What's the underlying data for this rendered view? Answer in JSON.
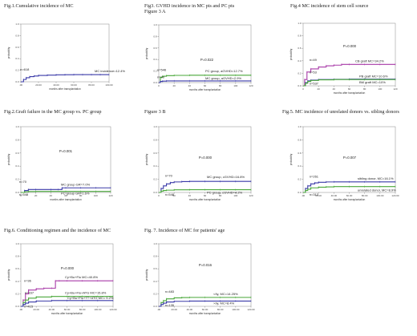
{
  "chart_data": [
    {
      "id": "fig1",
      "type": "line",
      "title": "Fig.1.Cumulative incidence of MC",
      "xlabel": "months after transplantation",
      "ylabel": "probability",
      "xticks": [
        ".00",
        "20.00",
        "40.00",
        "60.00",
        "80.00",
        "100.00"
      ],
      "yticks": [
        "0.0",
        "0.2",
        "0.4",
        "0.6",
        "0.8",
        "1.0"
      ],
      "xlim": [
        0,
        100
      ],
      "ylim": [
        0,
        1
      ],
      "p_value": "",
      "series": [
        {
          "name": "MC incidence=12.4%",
          "label": "MC incidence=12.4%",
          "color": "#3a3aa8",
          "x": [
            0,
            3,
            6,
            10,
            15,
            20,
            30,
            40,
            50,
            60,
            70,
            80,
            90,
            100
          ],
          "y": [
            0,
            0.04,
            0.07,
            0.09,
            0.1,
            0.11,
            0.115,
            0.12,
            0.122,
            0.124,
            0.124,
            0.124,
            0.124,
            0.124
          ]
        }
      ],
      "n_labels": [
        {
          "text": "n=618",
          "x": 1,
          "y": 0.15
        }
      ]
    },
    {
      "id": "fig3a",
      "type": "line",
      "title": "Fig3. GVHD incidence in MC pts and PC pts",
      "subtitle": "Figure 3 A",
      "xlabel": "months after transplantation",
      "ylabel": "probability",
      "xticks": [
        "0",
        "20",
        "40",
        "60",
        "80",
        "100",
        "120"
      ],
      "yticks": [
        "0.0",
        "0.2",
        "0.4",
        "0.6",
        "0.8",
        "1.0"
      ],
      "xlim": [
        0,
        120
      ],
      "ylim": [
        0,
        1
      ],
      "p_value": "P=0.022",
      "series": [
        {
          "name": "PC group, aGVHD=12.7%",
          "label": "PC group, aGVHD=12.7%",
          "color": "#4aa83a",
          "x": [
            0,
            2,
            5,
            10,
            20,
            40,
            60,
            80,
            100,
            120
          ],
          "y": [
            0,
            0.09,
            0.11,
            0.12,
            0.125,
            0.127,
            0.127,
            0.127,
            0.127,
            0.127
          ]
        },
        {
          "name": "MC group, aGVHD=2.9%",
          "label": "MC group, aGVHD=2.9%",
          "color": "#3a3aa8",
          "x": [
            0,
            2,
            5,
            10,
            20,
            40,
            60,
            80,
            100,
            120
          ],
          "y": [
            0,
            0.02,
            0.025,
            0.029,
            0.029,
            0.029,
            0.029,
            0.029,
            0.029,
            0.029
          ]
        }
      ],
      "n_labels": [
        {
          "text": "n=546",
          "x": 1,
          "y": 0.16
        },
        {
          "text": "n=70",
          "x": 1,
          "y": 0.05
        }
      ]
    },
    {
      "id": "fig4",
      "type": "line",
      "title": "Fig.4 MC incidence of stem cell source",
      "xlabel": "months after transplantation",
      "ylabel": "probability",
      "xticks": [
        "0",
        "20",
        "40",
        "60",
        "80",
        "100",
        "120"
      ],
      "yticks": [
        "0.0",
        "0.2",
        "0.4",
        "0.6",
        "0.8",
        "1.0"
      ],
      "xlim": [
        0,
        120
      ],
      "ylim": [
        0,
        1
      ],
      "p_value": "P=0.000",
      "series": [
        {
          "name": "CB graft MC=34.2%",
          "label": "CB graft MC=34.2%",
          "color": "#a83aa8",
          "x": [
            0,
            2,
            5,
            10,
            20,
            30,
            40,
            50,
            60,
            80,
            100,
            120
          ],
          "y": [
            0,
            0.1,
            0.22,
            0.27,
            0.3,
            0.32,
            0.33,
            0.342,
            0.342,
            0.342,
            0.342,
            0.342
          ]
        },
        {
          "name": "PB graft MC=10.6%",
          "label": "PB graft MC=10.6%",
          "color": "#3a3aa8",
          "x": [
            0,
            3,
            6,
            10,
            20,
            40,
            60,
            80,
            100,
            120
          ],
          "y": [
            0,
            0.05,
            0.08,
            0.09,
            0.1,
            0.104,
            0.106,
            0.106,
            0.106,
            0.106
          ]
        },
        {
          "name": "BM graft MC=10%",
          "label": "BM graft MC=10%",
          "color": "#4aa83a",
          "x": [
            0,
            3,
            6,
            10,
            20,
            40,
            60,
            80,
            100,
            120
          ],
          "y": [
            0,
            0.04,
            0.07,
            0.085,
            0.095,
            0.1,
            0.1,
            0.1,
            0.1,
            0.1
          ]
        }
      ],
      "n_labels": [
        {
          "text": "n=49",
          "x": 5,
          "y": 0.36
        },
        {
          "text": "n=53",
          "x": 5,
          "y": 0.15
        },
        {
          "text": "n=537",
          "x": 5,
          "y": 0.07
        }
      ]
    },
    {
      "id": "fig2",
      "type": "line",
      "title": "Fig.2.Graft failure in the MC group vs. PC group",
      "xlabel": "months after transplantation",
      "ylabel": "probability",
      "xticks": [
        "0",
        "20",
        "40",
        "60",
        "80",
        "100",
        "120"
      ],
      "yticks": [
        "0.0",
        "0.2",
        "0.4",
        "0.6",
        "0.8",
        "1.0"
      ],
      "xlim": [
        0,
        120
      ],
      "ylim": [
        0,
        1
      ],
      "p_value": "P=0.001",
      "series": [
        {
          "name": "MC group GR=7.0%",
          "label": "MC group GR=7.0%",
          "color": "#3a3aa8",
          "x": [
            0,
            5,
            10,
            20,
            40,
            50,
            55,
            60,
            80,
            100,
            120
          ],
          "y": [
            0,
            0.03,
            0.045,
            0.045,
            0.045,
            0.045,
            0.07,
            0.07,
            0.07,
            0.07,
            0.07
          ]
        },
        {
          "name": "PC group GR=1.6%",
          "label": "PC group GR=1.6%",
          "color": "#4aa83a",
          "x": [
            0,
            5,
            10,
            20,
            40,
            60,
            80,
            100,
            120
          ],
          "y": [
            0,
            0.01,
            0.014,
            0.016,
            0.016,
            0.016,
            0.016,
            0.016,
            0.016
          ]
        }
      ],
      "n_labels": [
        {
          "text": "n=70",
          "x": 1,
          "y": 0.11
        },
        {
          "text": "n=548",
          "x": 1,
          "y": 0.0
        }
      ]
    },
    {
      "id": "fig3b",
      "type": "line",
      "title": "",
      "subtitle": "Figure 3 B",
      "xlabel": "months after transplantation",
      "ylabel": "probability",
      "xticks": [
        "0",
        "20",
        "40",
        "60",
        "80",
        "100",
        "120"
      ],
      "yticks": [
        "0.0",
        "0.2",
        "0.4",
        "0.6",
        "0.8",
        "1.0"
      ],
      "xlim": [
        0,
        120
      ],
      "ylim": [
        0,
        1
      ],
      "p_value": "P=0.000",
      "series": [
        {
          "name": "MC group, cGVHD=16.8%",
          "label": "MC group, cGVHD=16.8%",
          "color": "#3a3aa8",
          "x": [
            0,
            3,
            6,
            10,
            15,
            20,
            30,
            40,
            60,
            80,
            100,
            120
          ],
          "y": [
            0,
            0.06,
            0.1,
            0.13,
            0.15,
            0.16,
            0.165,
            0.168,
            0.168,
            0.168,
            0.168,
            0.168
          ]
        },
        {
          "name": "PC group, cGVHD=4.2%",
          "label": "PC group, cGVHD=4.2%",
          "color": "#4aa83a",
          "x": [
            0,
            3,
            6,
            10,
            20,
            40,
            60,
            80,
            100,
            120
          ],
          "y": [
            0,
            0.02,
            0.03,
            0.035,
            0.04,
            0.042,
            0.042,
            0.042,
            0.042,
            0.042
          ]
        }
      ],
      "n_labels": [
        {
          "text": "n=70",
          "x": 5,
          "y": 0.2
        },
        {
          "text": "n=548",
          "x": 5,
          "y": 0.0
        }
      ]
    },
    {
      "id": "fig5",
      "type": "line",
      "title": "Fig.5. MC incidence of unrelated donors vs. sibling donors",
      "xlabel": "months after transplantation",
      "ylabel": "probability",
      "xticks": [
        ".00",
        "20.00",
        "40.00",
        "60.00",
        "80.00",
        "100.00",
        "120.00"
      ],
      "yticks": [
        "0.0",
        "0.2",
        "0.4",
        "0.6",
        "0.8",
        "1.0"
      ],
      "xlim": [
        0,
        120
      ],
      "ylim": [
        0,
        1
      ],
      "p_value": "P=0.007",
      "series": [
        {
          "name": "sibling donor, MC=16.1%",
          "label": "sibling donor, MC=16.1%",
          "color": "#3a3aa8",
          "x": [
            0,
            3,
            6,
            10,
            15,
            20,
            30,
            40,
            60,
            80,
            100,
            120
          ],
          "y": [
            0,
            0.06,
            0.1,
            0.13,
            0.145,
            0.155,
            0.16,
            0.161,
            0.161,
            0.161,
            0.161,
            0.161
          ]
        },
        {
          "name": "unrelated donor, MC=8.9%",
          "label": "unrelated donor, MC=8.9%",
          "color": "#4aa83a",
          "x": [
            0,
            3,
            6,
            10,
            20,
            30,
            40,
            60,
            80,
            100,
            120
          ],
          "y": [
            0,
            0.03,
            0.05,
            0.07,
            0.08,
            0.085,
            0.089,
            0.089,
            0.089,
            0.089,
            0.089
          ]
        }
      ],
      "n_labels": [
        {
          "text": "n=261",
          "x": 5,
          "y": 0.19
        },
        {
          "text": "n=313",
          "x": 5,
          "y": 0.01
        }
      ]
    },
    {
      "id": "fig6",
      "type": "line",
      "title": "Fig.6. Conditioning regimen and the incidence of MC",
      "xlabel": "months after transplantation",
      "ylabel": "probability",
      "xticks": [
        ".00",
        "20.00",
        "40.00",
        "60.00",
        "80.00",
        "100.00",
        "120.00"
      ],
      "yticks": [
        "0.0",
        "0.2",
        "0.4",
        "0.6",
        "0.8",
        "1.0"
      ],
      "xlim": [
        0,
        120
      ],
      "ylim": [
        0,
        1
      ],
      "p_value": "P=0.000",
      "series": [
        {
          "name": "Cy+Bu+Flu MC=40.8%",
          "label": "Cy+Bu+Flu MC=40.8%",
          "color": "#a83aa8",
          "x": [
            0,
            3,
            6,
            10,
            20,
            30,
            40,
            45,
            50,
            60,
            80,
            100,
            120
          ],
          "y": [
            0,
            0.1,
            0.2,
            0.26,
            0.28,
            0.29,
            0.29,
            0.408,
            0.408,
            0.408,
            0.408,
            0.408,
            0.408
          ]
        },
        {
          "name": "Cy+Bu+Flu+ATG MC=15.8%",
          "label": "Cy+Bu+Flu+ATG MC=15.8%",
          "color": "#4aa83a",
          "x": [
            0,
            3,
            6,
            10,
            20,
            40,
            60,
            80,
            100,
            120
          ],
          "y": [
            0,
            0.06,
            0.1,
            0.13,
            0.15,
            0.158,
            0.158,
            0.158,
            0.158,
            0.158
          ]
        },
        {
          "name": "Cy+Bu+Flu+TT+ATG MC= 9.2%",
          "label": "Cy+Bu+Flu+TT+ATG MC= 9.2%",
          "color": "#3a3aa8",
          "x": [
            0,
            3,
            6,
            10,
            20,
            40,
            60,
            80,
            100,
            120
          ],
          "y": [
            0,
            0.03,
            0.05,
            0.07,
            0.085,
            0.092,
            0.092,
            0.092,
            0.092,
            0.092
          ]
        }
      ],
      "n_labels": [
        {
          "text": "n=36",
          "x": 3,
          "y": 0.35
        },
        {
          "text": "n=167",
          "x": 4,
          "y": 0.17
        },
        {
          "text": "n=415",
          "x": 3,
          "y": 0.03
        }
      ]
    },
    {
      "id": "fig7",
      "type": "line",
      "title": "Fig. 7. Incidence of MC for patients' age",
      "xlabel": "months after transplantation",
      "ylabel": "probability",
      "xticks": [
        ".00",
        "20.00",
        "40.00",
        "60.00",
        "80.00",
        "100.00",
        "120.00"
      ],
      "yticks": [
        "0.0",
        "0.2",
        "0.4",
        "0.6",
        "0.8",
        "1.0"
      ],
      "xlim": [
        0,
        120
      ],
      "ylim": [
        0,
        1
      ],
      "p_value": "P=0.016",
      "series": [
        {
          "name": "<9y, MC=14.25%",
          "label": "<9y, MC=14.25%",
          "color": "#4aa83a",
          "x": [
            0,
            3,
            6,
            10,
            20,
            30,
            40,
            60,
            80,
            100,
            120
          ],
          "y": [
            0,
            0.06,
            0.09,
            0.12,
            0.135,
            0.14,
            0.1425,
            0.1425,
            0.1425,
            0.1425,
            0.1425
          ]
        },
        {
          "name": ">9y, MC=8.4%",
          "label": ">9y, MC=8.4%",
          "color": "#3a3aa8",
          "x": [
            0,
            3,
            6,
            10,
            20,
            40,
            60,
            80,
            100,
            120
          ],
          "y": [
            0,
            0.03,
            0.05,
            0.07,
            0.08,
            0.084,
            0.084,
            0.084,
            0.084,
            0.084
          ]
        }
      ],
      "n_labels": [
        {
          "text": "n=483",
          "x": 5,
          "y": 0.18
        },
        {
          "text": "n=135",
          "x": 5,
          "y": 0.05
        }
      ]
    }
  ]
}
